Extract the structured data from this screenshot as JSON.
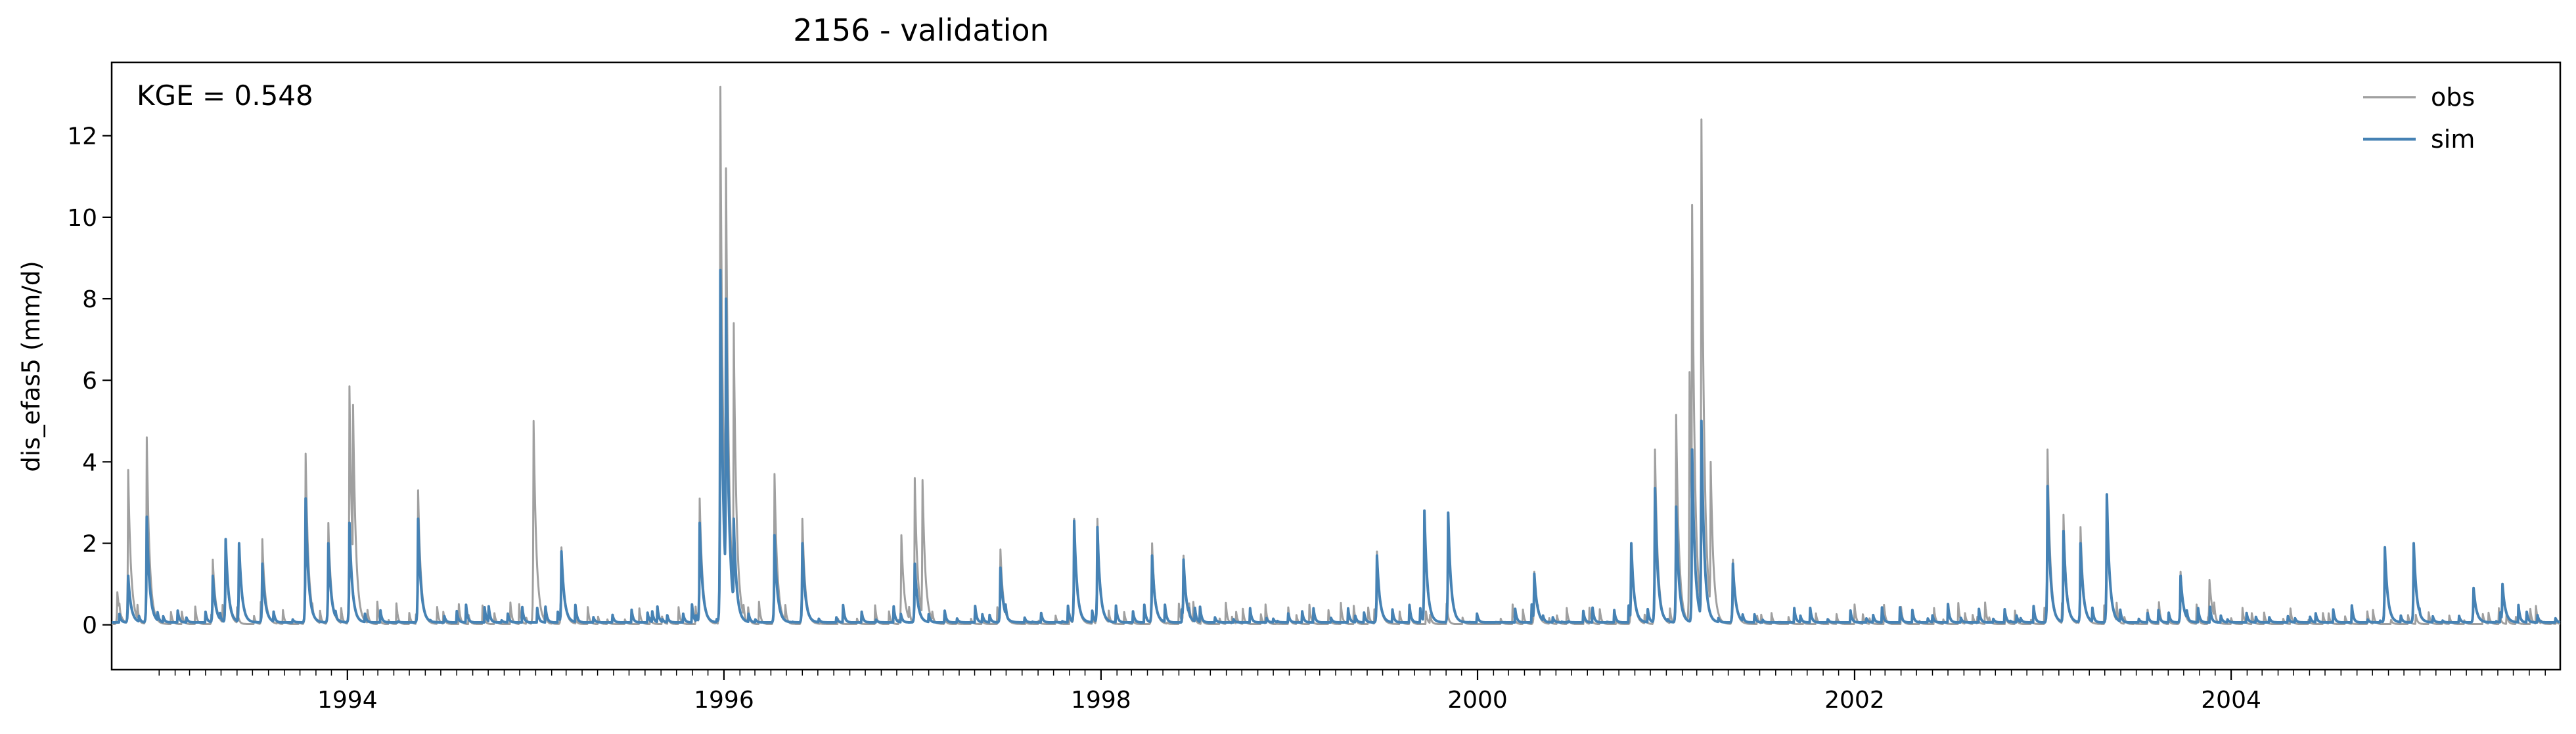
{
  "chart_data": {
    "type": "line",
    "title": "2156 - validation",
    "xlabel": "",
    "ylabel": "dis_efas5 (mm/d)",
    "annotation": "KGE = 0.548",
    "xlim": [
      "1992-10-01",
      "2005-09-30"
    ],
    "ylim": [
      -1.1,
      13.8
    ],
    "x_ticks": [
      "1994",
      "1996",
      "1998",
      "2000",
      "2002",
      "2004"
    ],
    "y_ticks": [
      "0",
      "2",
      "4",
      "6",
      "8",
      "10",
      "12"
    ],
    "y_tick_values": [
      0,
      2,
      4,
      6,
      8,
      10,
      12
    ],
    "legend_position": "top-right",
    "grid": false,
    "series": [
      {
        "name": "obs",
        "color": "#a0a0a0",
        "peaks": [
          {
            "date": "1992-10-12",
            "value": 0.8
          },
          {
            "date": "1992-11-02",
            "value": 3.8
          },
          {
            "date": "1992-12-08",
            "value": 4.6
          },
          {
            "date": "1993-04-15",
            "value": 1.6
          },
          {
            "date": "1993-05-10",
            "value": 2.0
          },
          {
            "date": "1993-07-20",
            "value": 2.1
          },
          {
            "date": "1993-10-12",
            "value": 4.2
          },
          {
            "date": "1993-11-25",
            "value": 2.5
          },
          {
            "date": "1994-01-05",
            "value": 5.85
          },
          {
            "date": "1994-01-12",
            "value": 5.4
          },
          {
            "date": "1994-05-18",
            "value": 3.3
          },
          {
            "date": "1994-12-28",
            "value": 5.0
          },
          {
            "date": "1995-02-20",
            "value": 1.9
          },
          {
            "date": "1995-11-15",
            "value": 3.1
          },
          {
            "date": "1995-12-25",
            "value": 13.2
          },
          {
            "date": "1996-01-05",
            "value": 11.2
          },
          {
            "date": "1996-01-20",
            "value": 7.4
          },
          {
            "date": "1996-04-08",
            "value": 3.7
          },
          {
            "date": "1996-06-01",
            "value": 2.6
          },
          {
            "date": "1996-12-10",
            "value": 2.2
          },
          {
            "date": "1997-01-05",
            "value": 3.6
          },
          {
            "date": "1997-01-20",
            "value": 3.55
          },
          {
            "date": "1997-06-20",
            "value": 1.85
          },
          {
            "date": "1997-11-10",
            "value": 2.6
          },
          {
            "date": "1997-12-25",
            "value": 2.6
          },
          {
            "date": "1998-04-10",
            "value": 2.0
          },
          {
            "date": "1998-06-10",
            "value": 1.7
          },
          {
            "date": "1999-06-20",
            "value": 1.8
          },
          {
            "date": "2000-04-20",
            "value": 1.3
          },
          {
            "date": "2000-10-25",
            "value": 2.0
          },
          {
            "date": "2000-12-10",
            "value": 4.3
          },
          {
            "date": "2001-01-20",
            "value": 5.15
          },
          {
            "date": "2001-02-15",
            "value": 6.2
          },
          {
            "date": "2001-02-20",
            "value": 10.3
          },
          {
            "date": "2001-03-10",
            "value": 12.4
          },
          {
            "date": "2001-03-28",
            "value": 4.0
          },
          {
            "date": "2001-05-10",
            "value": 1.6
          },
          {
            "date": "2003-01-10",
            "value": 4.3
          },
          {
            "date": "2003-02-10",
            "value": 2.7
          },
          {
            "date": "2003-03-15",
            "value": 2.4
          },
          {
            "date": "2003-05-05",
            "value": 3.2
          },
          {
            "date": "2003-09-25",
            "value": 1.3
          },
          {
            "date": "2003-11-20",
            "value": 1.1
          }
        ]
      },
      {
        "name": "sim",
        "color": "#4682b4",
        "peaks": [
          {
            "date": "1992-11-02",
            "value": 1.2
          },
          {
            "date": "1992-12-08",
            "value": 2.65
          },
          {
            "date": "1993-04-15",
            "value": 1.2
          },
          {
            "date": "1993-05-10",
            "value": 2.1
          },
          {
            "date": "1993-06-05",
            "value": 2.0
          },
          {
            "date": "1993-07-20",
            "value": 1.5
          },
          {
            "date": "1993-10-12",
            "value": 3.1
          },
          {
            "date": "1993-11-25",
            "value": 2.0
          },
          {
            "date": "1994-01-05",
            "value": 2.5
          },
          {
            "date": "1994-05-18",
            "value": 2.6
          },
          {
            "date": "1995-02-20",
            "value": 1.8
          },
          {
            "date": "1995-11-15",
            "value": 2.5
          },
          {
            "date": "1995-12-25",
            "value": 8.7
          },
          {
            "date": "1996-01-05",
            "value": 8.0
          },
          {
            "date": "1996-01-20",
            "value": 2.6
          },
          {
            "date": "1996-04-08",
            "value": 2.2
          },
          {
            "date": "1996-06-01",
            "value": 2.0
          },
          {
            "date": "1997-01-05",
            "value": 1.5
          },
          {
            "date": "1997-06-20",
            "value": 1.4
          },
          {
            "date": "1997-11-10",
            "value": 2.55
          },
          {
            "date": "1997-12-25",
            "value": 2.4
          },
          {
            "date": "1998-04-10",
            "value": 1.7
          },
          {
            "date": "1998-06-10",
            "value": 1.6
          },
          {
            "date": "1999-06-20",
            "value": 1.7
          },
          {
            "date": "1999-09-20",
            "value": 2.8
          },
          {
            "date": "1999-11-05",
            "value": 2.75
          },
          {
            "date": "2000-04-20",
            "value": 1.25
          },
          {
            "date": "2000-10-25",
            "value": 2.0
          },
          {
            "date": "2000-12-10",
            "value": 3.35
          },
          {
            "date": "2001-01-20",
            "value": 2.9
          },
          {
            "date": "2001-02-20",
            "value": 4.3
          },
          {
            "date": "2001-03-10",
            "value": 5.0
          },
          {
            "date": "2001-05-10",
            "value": 1.5
          },
          {
            "date": "2003-01-10",
            "value": 3.4
          },
          {
            "date": "2003-02-10",
            "value": 2.3
          },
          {
            "date": "2003-03-15",
            "value": 2.0
          },
          {
            "date": "2003-05-05",
            "value": 3.2
          },
          {
            "date": "2003-09-25",
            "value": 1.2
          },
          {
            "date": "2004-10-25",
            "value": 1.9
          },
          {
            "date": "2004-12-20",
            "value": 2.0
          },
          {
            "date": "2005-04-15",
            "value": 0.9
          },
          {
            "date": "2005-06-10",
            "value": 1.0
          }
        ]
      }
    ]
  }
}
